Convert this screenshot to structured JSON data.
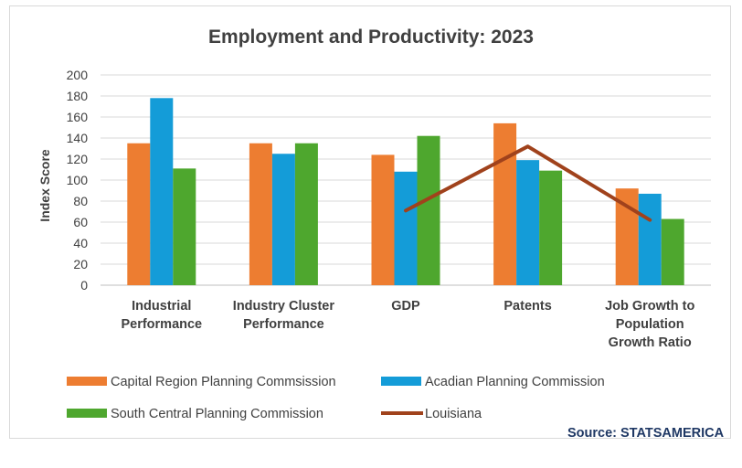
{
  "chart_data": {
    "type": "bar",
    "title": "Employment and Productivity: 2023",
    "ylabel": "Index Score",
    "xlabel": "",
    "ylim": [
      0,
      200
    ],
    "yticks": [
      0,
      20,
      40,
      60,
      80,
      100,
      120,
      140,
      160,
      180,
      200
    ],
    "grid": true,
    "legend_position": "bottom",
    "categories": [
      [
        "Industrial",
        "Performance"
      ],
      [
        "Industry Cluster",
        "Performance"
      ],
      [
        "GDP"
      ],
      [
        "Patents"
      ],
      [
        "Job Growth to",
        "Population",
        "Growth Ratio"
      ]
    ],
    "series": [
      {
        "name": "Capital Region Planning Commsission",
        "type": "bar",
        "color": "#ed7d31",
        "values": [
          135,
          135,
          124,
          154,
          92
        ]
      },
      {
        "name": "Acadian Planning Commission",
        "type": "bar",
        "color": "#149cd8",
        "values": [
          178,
          125,
          108,
          119,
          87
        ]
      },
      {
        "name": "South Central Planning Commission",
        "type": "bar",
        "color": "#4ea72e",
        "values": [
          111,
          135,
          142,
          109,
          63
        ]
      },
      {
        "name": "Louisiana",
        "type": "line",
        "color": "#a0421c",
        "values": [
          null,
          null,
          71,
          132,
          62
        ]
      }
    ]
  },
  "source": "Source: STATSAMERICA"
}
